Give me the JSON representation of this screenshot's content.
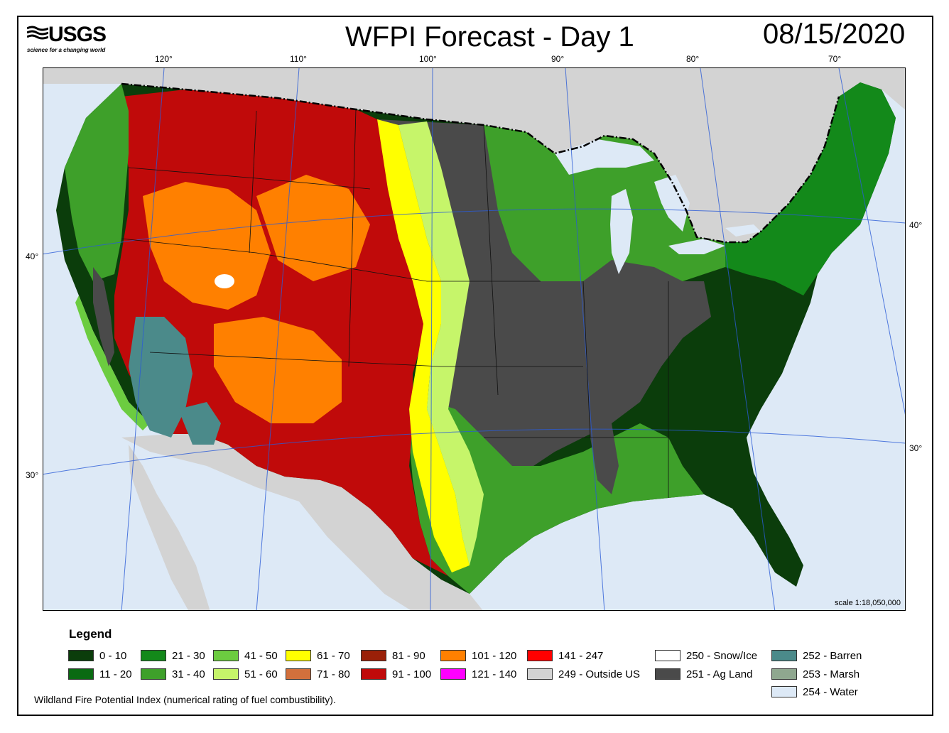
{
  "header": {
    "logo_text": "USGS",
    "logo_tagline": "science for a changing world",
    "title": "WFPI Forecast - Day 1",
    "date": "08/15/2020"
  },
  "map": {
    "longitude_labels": [
      "120°",
      "110°",
      "100°",
      "90°",
      "80°",
      "70°"
    ],
    "latitude_labels_left": [
      "40°",
      "30°"
    ],
    "latitude_labels_right": [
      "40°",
      "30°"
    ],
    "scale_text": "scale 1:18,050,000",
    "regions_depicted": [
      {
        "region": "Great Basin / Intermountain West",
        "class": "91 - 100"
      },
      {
        "region": "Colorado Plateau",
        "class": "101 - 120"
      },
      {
        "region": "Desert Southwest",
        "class": "252 - Barren"
      },
      {
        "region": "Northern / Central Plains",
        "class": "251 - Ag Land"
      },
      {
        "region": "Southeast",
        "class": "0 - 10"
      },
      {
        "region": "Great Lakes",
        "class": "254 - Water"
      },
      {
        "region": "Canada / Mexico",
        "class": "249 - Outside US"
      }
    ]
  },
  "legend": {
    "title": "Legend",
    "items": [
      {
        "label": "0 - 10",
        "color": "#0b3d0b"
      },
      {
        "label": "11 - 20",
        "color": "#0a6a12"
      },
      {
        "label": "21 - 30",
        "color": "#13891a"
      },
      {
        "label": "31 - 40",
        "color": "#3ea02a"
      },
      {
        "label": "41 - 50",
        "color": "#6ccc40"
      },
      {
        "label": "51 - 60",
        "color": "#c6f56a"
      },
      {
        "label": "61 - 70",
        "color": "#ffff00"
      },
      {
        "label": "71 - 80",
        "color": "#d2703c"
      },
      {
        "label": "81 - 90",
        "color": "#9a2008"
      },
      {
        "label": "91 - 100",
        "color": "#c00a0a"
      },
      {
        "label": "101 - 120",
        "color": "#ff8000"
      },
      {
        "label": "121 - 140",
        "color": "#ff00ff"
      },
      {
        "label": "141 - 247",
        "color": "#ff0000"
      },
      {
        "label": "249 - Outside US",
        "color": "#d3d3d3"
      },
      {
        "label": "250 - Snow/Ice",
        "color": "#ffffff"
      },
      {
        "label": "251 - Ag Land",
        "color": "#4a4a4a"
      },
      {
        "label": "252 - Barren",
        "color": "#4b8a8a"
      },
      {
        "label": "253 - Marsh",
        "color": "#8fa78f"
      },
      {
        "label": "254 - Water",
        "color": "#dde9f6"
      }
    ],
    "footnote": "Wildland Fire Potential Index (numerical rating of fuel combustibility)."
  }
}
